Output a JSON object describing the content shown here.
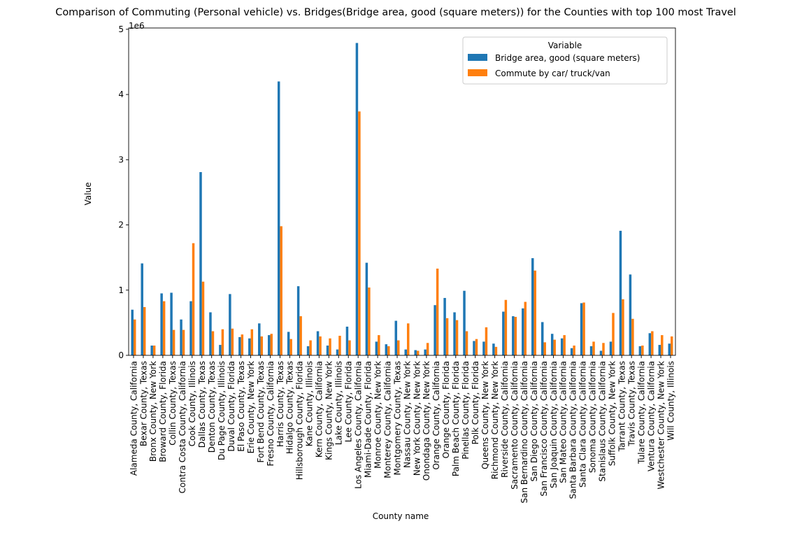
{
  "chart_data": {
    "type": "bar",
    "title": "Comparison of Commuting (Personal vehicle) vs. Bridges(Bridge area, good (square meters)) for the Counties with top 100 most Travel",
    "xlabel": "County name",
    "ylabel": "Value",
    "y_offset_label": "1e6",
    "y_scale": 1000000,
    "ylim": [
      0,
      5020000
    ],
    "yticks": [
      "0",
      "1",
      "2",
      "3",
      "4",
      "5"
    ],
    "legend_title": "Variable",
    "legend_position": "top-right",
    "grid": false,
    "categories": [
      "Alameda County, California",
      "Bexar County, Texas",
      "Bronx County, New York",
      "Broward County, Florida",
      "Collin County, Texas",
      "Contra Costa County, California",
      "Cook County, Illinois",
      "Dallas County, Texas",
      "Denton County, Texas",
      "Du Page County, Illinois",
      "Duval County, Florida",
      "El Paso County, Texas",
      "Erie County, New York",
      "Fort Bend County, Texas",
      "Fresno County, California",
      "Harris County, Texas",
      "Hidalgo County, Texas",
      "Hillsborough County, Florida",
      "Kane County, Illinois",
      "Kern County, California",
      "Kings County, New York",
      "Lake County, Illinois",
      "Lee County, Florida",
      "Los Angeles County, California",
      "Miami-Dade County, Florida",
      "Monroe County, New York",
      "Monterey County, California",
      "Montgomery County, Texas",
      "Nassau County, New York",
      "New York County, New York",
      "Onondaga County, New York",
      "Orange County, California",
      "Orange County, Florida",
      "Palm Beach County, Florida",
      "Pinellas County, Florida",
      "Polk County, Florida",
      "Queens County, New York",
      "Richmond County, New York",
      "Riverside County, California",
      "Sacramento County, California",
      "San Bernardino County, California",
      "San Diego County, California",
      "San Francisco County, California",
      "San Joaquin County, California",
      "San Mateo County, California",
      "Santa Barbara County, California",
      "Santa Clara County, California",
      "Sonoma County, California",
      "Stanislaus County, California",
      "Suffolk County, New York",
      "Tarrant County, Texas",
      "Travis County, Texas",
      "Tulare County, California",
      "Ventura County, California",
      "Westchester County, New York",
      "Will County, Illinois"
    ],
    "series": [
      {
        "name": "Bridge area, good (square meters)",
        "color": "#1f77b4",
        "values": [
          700000,
          1410000,
          150000,
          950000,
          960000,
          550000,
          830000,
          2810000,
          660000,
          160000,
          940000,
          280000,
          260000,
          490000,
          310000,
          4200000,
          360000,
          1060000,
          140000,
          370000,
          150000,
          90000,
          440000,
          4790000,
          1420000,
          210000,
          170000,
          530000,
          90000,
          80000,
          90000,
          770000,
          880000,
          660000,
          990000,
          220000,
          210000,
          180000,
          670000,
          600000,
          720000,
          1490000,
          510000,
          330000,
          260000,
          110000,
          800000,
          140000,
          70000,
          210000,
          1910000,
          1240000,
          140000,
          340000,
          160000,
          180000
        ]
      },
      {
        "name": "Commute by car/ truck/van",
        "color": "#ff7f0e",
        "values": [
          550000,
          740000,
          150000,
          830000,
          390000,
          390000,
          1720000,
          1130000,
          370000,
          400000,
          410000,
          320000,
          400000,
          290000,
          330000,
          1980000,
          250000,
          600000,
          230000,
          290000,
          260000,
          300000,
          230000,
          3740000,
          1040000,
          310000,
          140000,
          230000,
          490000,
          70000,
          190000,
          1330000,
          570000,
          540000,
          370000,
          250000,
          430000,
          130000,
          850000,
          590000,
          820000,
          1300000,
          200000,
          240000,
          310000,
          150000,
          810000,
          210000,
          190000,
          650000,
          860000,
          560000,
          150000,
          370000,
          310000,
          290000
        ]
      }
    ]
  }
}
